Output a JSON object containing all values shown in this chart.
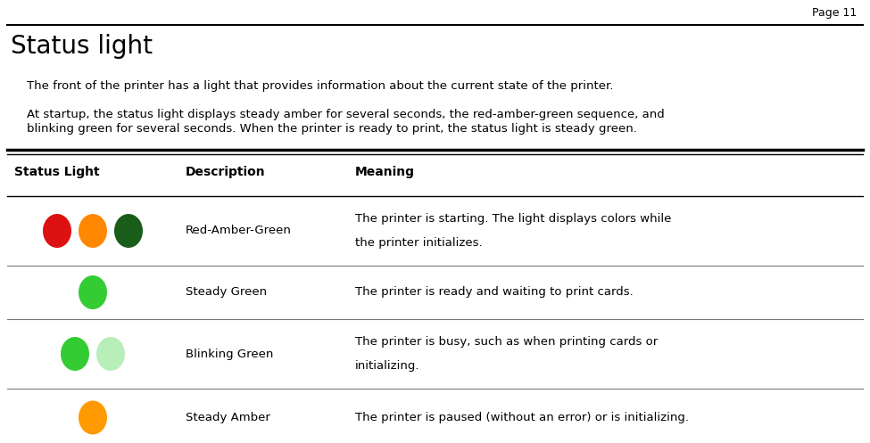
{
  "page_number": "Page 11",
  "title": "Status light",
  "paragraph1": "The front of the printer has a light that provides information about the current state of the printer.",
  "paragraph2_line1": "At startup, the status light displays steady amber for several seconds, the red-amber-green sequence, and",
  "paragraph2_line2": "blinking green for several seconds. When the printer is ready to print, the status light is steady green.",
  "table_headers": [
    "Status Light",
    "Description",
    "Meaning"
  ],
  "table_rows": [
    {
      "description": "Red-Amber-Green",
      "meaning_line1": "The printer is starting. The light displays colors while",
      "meaning_line2": "the printer initializes.",
      "lights": [
        {
          "color": "#dd1111"
        },
        {
          "color": "#ff8800"
        },
        {
          "color": "#1a5c1a"
        }
      ]
    },
    {
      "description": "Steady Green",
      "meaning_line1": "The printer is ready and waiting to print cards.",
      "meaning_line2": "",
      "lights": [
        {
          "color": "#33cc33"
        }
      ]
    },
    {
      "description": "Blinking Green",
      "meaning_line1": "The printer is busy, such as when printing cards or",
      "meaning_line2": "initializing.",
      "lights": [
        {
          "color": "#33cc33"
        },
        {
          "color": "#b8eeb8"
        }
      ]
    },
    {
      "description": "Steady Amber",
      "meaning_line1": "The printer is paused (without an error) or is initializing.",
      "meaning_line2": "",
      "lights": [
        {
          "color": "#ff9900"
        }
      ]
    }
  ],
  "background_color": "#ffffff",
  "text_color": "#000000",
  "figwidth": 9.75,
  "figheight": 4.97,
  "dpi": 100
}
